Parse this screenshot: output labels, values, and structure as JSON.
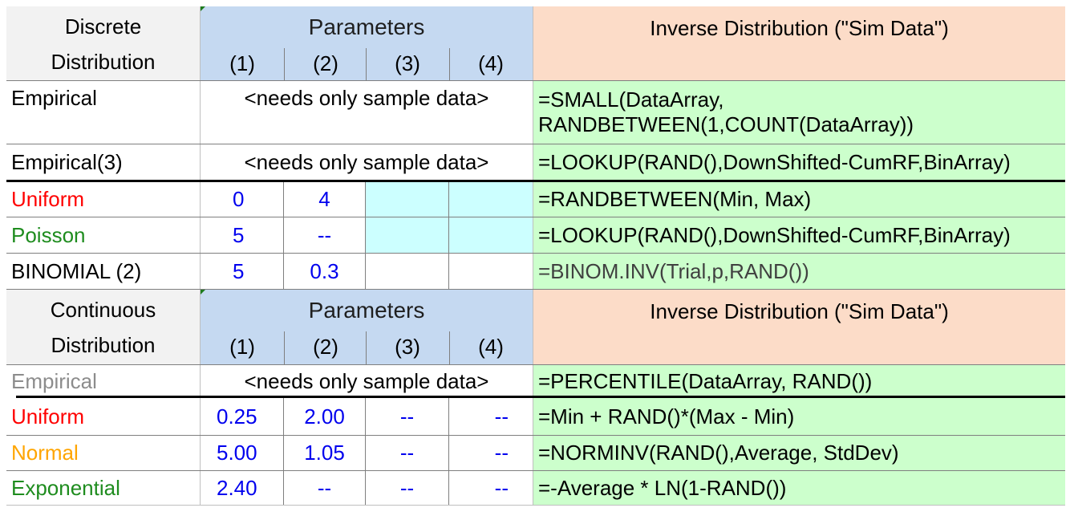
{
  "discrete_header": {
    "col1_line1": "Discrete",
    "col1_line2": "Distribution",
    "params_title": "Parameters",
    "param_nums": [
      "(1)",
      "(2)",
      "(3)",
      "(4)"
    ],
    "inverse_title": "Inverse Distribution (\"Sim Data\")"
  },
  "discrete_rows": [
    {
      "name": "Empirical",
      "merged": "<needs only sample data>",
      "formula_line1": "=SMALL(DataArray,",
      "formula_line2": "RANDBETWEEN(1,COUNT(DataArray))"
    },
    {
      "name": "Empirical(3)",
      "merged": "<needs only sample data>",
      "formula": "=LOOKUP(RAND(),DownShifted-CumRF,BinArray)"
    },
    {
      "name": "Uniform",
      "name_color": "#ff0000",
      "p1": "0",
      "p2": "4",
      "p3": "",
      "p4": "",
      "formula": "=RANDBETWEEN(Min, Max)"
    },
    {
      "name": "Poisson",
      "name_color": "#1e8c1e",
      "p1": "5",
      "p2": "--",
      "p3": "",
      "p4": "",
      "formula": "=LOOKUP(RAND(),DownShifted-CumRF,BinArray)"
    },
    {
      "name": "BINOMIAL (2)",
      "p1": "5",
      "p2": "0.3",
      "p3": "",
      "p4": "",
      "formula": " =BINOM.INV(Trial,p,RAND())"
    }
  ],
  "continuous_header": {
    "col1_line1": "Continuous",
    "col1_line2": "Distribution",
    "params_title": "Parameters",
    "param_nums": [
      "(1)",
      "(2)",
      "(3)",
      "(4)"
    ],
    "inverse_title": "Inverse Distribution (\"Sim Data\")"
  },
  "continuous_rows": [
    {
      "name": "Empirical",
      "name_color": "#8c8c8c",
      "merged": "<needs only sample data>",
      "formula": "=PERCENTILE(DataArray, RAND())"
    },
    {
      "name": "Uniform",
      "name_color": "#ff0000",
      "p1": "0.25",
      "p2": "2.00",
      "p3": "--",
      "p4": "--",
      "formula": "=Min + RAND()*(Max - Min)"
    },
    {
      "name": "Normal",
      "name_color": "#ffa500",
      "p1": "5.00",
      "p2": "1.05",
      "p3": "--",
      "p4": "--",
      "formula": "=NORMINV(RAND(),Average, StdDev)"
    },
    {
      "name": "Exponential",
      "name_color": "#1e8c1e",
      "p1": "2.40",
      "p2": "--",
      "p3": "--",
      "p4": "--",
      "formula": "=-Average * LN(1-RAND())"
    }
  ]
}
